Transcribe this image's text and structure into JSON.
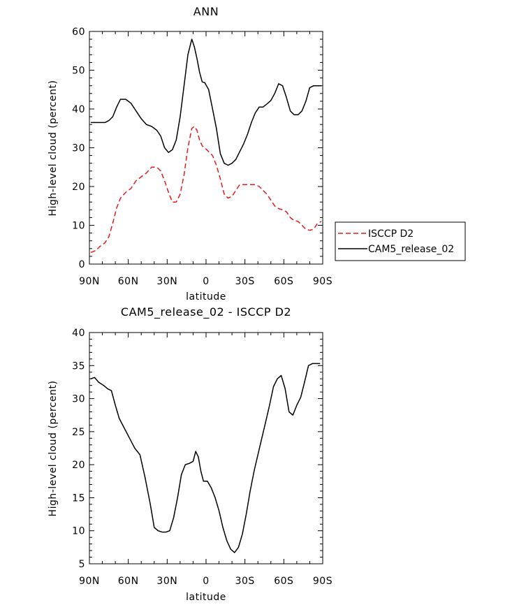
{
  "chart_data": [
    {
      "type": "line",
      "title": "ANN",
      "xlabel": "latitude",
      "ylabel": "High-level cloud (percent)",
      "xlim": [
        90,
        -90
      ],
      "ylim": [
        0,
        60
      ],
      "xticks": [
        90,
        60,
        30,
        0,
        -30,
        -60,
        -90
      ],
      "xtick_labels": [
        "90N",
        "60N",
        "30N",
        "0",
        "30S",
        "60S",
        "90S"
      ],
      "yticks": [
        0,
        10,
        20,
        30,
        40,
        50,
        60
      ],
      "ytick_labels": [
        "0",
        "10",
        "20",
        "30",
        "40",
        "50",
        "60"
      ],
      "legend_position": "right",
      "series": [
        {
          "name": "ISCCP D2",
          "color": "#e41a1c",
          "dash": "dashed",
          "x": [
            89,
            85,
            82,
            78,
            75,
            72,
            69,
            66,
            62,
            58,
            54,
            50,
            46,
            42,
            38,
            35,
            32,
            29,
            26,
            23,
            20,
            17,
            14,
            11,
            9,
            7,
            5,
            3,
            1,
            -2,
            -5,
            -8,
            -11,
            -14,
            -17,
            -20,
            -23,
            -26,
            -29,
            -32,
            -35,
            -38,
            -41,
            -44,
            -47,
            -50,
            -53,
            -56,
            -59,
            -62,
            -65,
            -68,
            -71,
            -74,
            -77,
            -80,
            -83,
            -86,
            -89
          ],
          "y": [
            3,
            3.5,
            4.5,
            5.5,
            7,
            10.5,
            14.5,
            17,
            18.5,
            19.5,
            21.5,
            22.5,
            23.5,
            25,
            25,
            24,
            21.5,
            18.5,
            16,
            16,
            18,
            23,
            30,
            35,
            35.5,
            34.5,
            32,
            30.5,
            30,
            29,
            28,
            25.5,
            22,
            18,
            17,
            17.5,
            19,
            20.5,
            20.5,
            20.5,
            20.5,
            20.5,
            20,
            19,
            18,
            16.5,
            15,
            14.3,
            14,
            13.5,
            12,
            11.2,
            11,
            10,
            9,
            8.7,
            9,
            10.5,
            11
          ]
        },
        {
          "name": "CAM5_release_02",
          "color": "#000000",
          "dash": "solid",
          "x": [
            89,
            85,
            82,
            78,
            75,
            72,
            69,
            66,
            62,
            58,
            54,
            50,
            46,
            42,
            38,
            35,
            32,
            29,
            26,
            23,
            20,
            17,
            14,
            11,
            9,
            7,
            5,
            3,
            1,
            -2,
            -5,
            -8,
            -11,
            -14,
            -17,
            -20,
            -23,
            -26,
            -29,
            -32,
            -35,
            -38,
            -41,
            -44,
            -47,
            -50,
            -53,
            -56,
            -59,
            -62,
            -65,
            -68,
            -71,
            -74,
            -77,
            -80,
            -83,
            -86,
            -89
          ],
          "y": [
            36.5,
            36.5,
            36.5,
            36.5,
            37,
            38,
            40.5,
            42.5,
            42.5,
            41.5,
            39.5,
            37.5,
            36,
            35.5,
            34.5,
            33,
            30,
            28.8,
            29.5,
            32,
            38,
            46,
            54,
            58,
            56,
            53,
            49.5,
            47,
            46.8,
            45,
            40,
            35,
            28.5,
            26,
            25.5,
            26,
            27,
            29,
            31,
            33.5,
            36.5,
            39,
            40.5,
            40.5,
            41.3,
            42.2,
            44,
            46.5,
            46,
            43,
            39.5,
            38.5,
            38.5,
            39.5,
            42,
            45.5,
            46,
            46,
            46
          ]
        }
      ]
    },
    {
      "type": "line",
      "title": "CAM5_release_02 - ISCCP D2",
      "xlabel": "latitude",
      "ylabel": "High-level cloud (percent)",
      "xlim": [
        90,
        -90
      ],
      "ylim": [
        5,
        40
      ],
      "xticks": [
        90,
        60,
        30,
        0,
        -30,
        -60,
        -90
      ],
      "xtick_labels": [
        "90N",
        "60N",
        "30N",
        "0",
        "30S",
        "60S",
        "90S"
      ],
      "yticks": [
        5,
        10,
        15,
        20,
        25,
        30,
        35,
        40
      ],
      "ytick_labels": [
        "5",
        "10",
        "15",
        "20",
        "25",
        "30",
        "35",
        "40"
      ],
      "series": [
        {
          "color": "#000000",
          "dash": "solid",
          "x": [
            89,
            86,
            83,
            79,
            76,
            73,
            70,
            67,
            63,
            59,
            55,
            51,
            47,
            43,
            40,
            37,
            34,
            31,
            28,
            25,
            22,
            19,
            16,
            13,
            10,
            8,
            6,
            4,
            2,
            -1,
            -4,
            -7,
            -10,
            -13,
            -16,
            -19,
            -22,
            -25,
            -28,
            -31,
            -34,
            -37,
            -40,
            -43,
            -46,
            -49,
            -52,
            -55,
            -58,
            -61,
            -64,
            -67,
            -70,
            -73,
            -76,
            -79,
            -82,
            -85,
            -88
          ],
          "y": [
            33,
            33.2,
            32.5,
            32,
            31.5,
            31.2,
            29,
            27,
            25.5,
            24,
            22.5,
            21.5,
            18,
            14,
            10.5,
            10,
            9.8,
            9.8,
            10,
            12,
            15,
            18.5,
            20,
            20.2,
            20.5,
            22,
            21.2,
            19,
            17.5,
            17.5,
            16.5,
            15,
            13,
            10.5,
            8.5,
            7.2,
            6.7,
            7.5,
            9.5,
            12.5,
            16,
            19,
            21.5,
            24,
            26.5,
            29,
            31.8,
            33,
            33.5,
            31.5,
            28,
            27.5,
            29,
            30.2,
            32.5,
            35,
            35.3,
            35.3,
            35.3
          ]
        }
      ]
    }
  ]
}
